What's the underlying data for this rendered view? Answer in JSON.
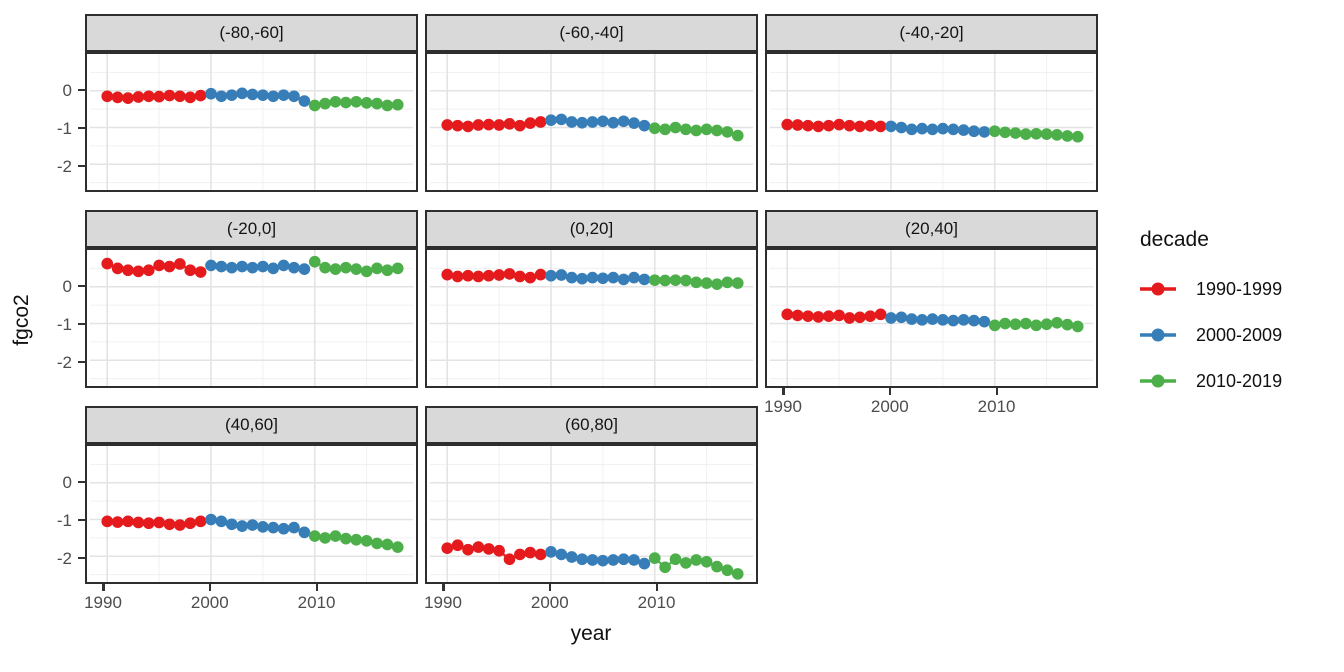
{
  "figure": {
    "y_axis": {
      "label": "fgco2",
      "ticks": [
        "0",
        "-1",
        "-2"
      ]
    },
    "x_axis": {
      "label": "year",
      "ticks": [
        "1990",
        "2000",
        "2010"
      ]
    }
  },
  "legend": {
    "title": "decade",
    "entries": [
      {
        "label": "1990-1999",
        "color": "#E41A1C"
      },
      {
        "label": "2000-2009",
        "color": "#377EB8"
      },
      {
        "label": "2010-2019",
        "color": "#4DAF4A"
      }
    ]
  },
  "chart_data": {
    "type": "line",
    "title": "",
    "xlabel": "year",
    "ylabel": "fgco2",
    "x_range": {
      "start": 1990,
      "end": 2018
    },
    "x_ticks": [
      1990,
      2000,
      2010
    ],
    "x_minor_ticks": [
      1995,
      2005,
      2015
    ],
    "ylim": [
      -2.7,
      1.0
    ],
    "y_ticks": [
      0,
      -1,
      -2
    ],
    "y_minor_ticks": [
      0.5,
      -0.5,
      -1.5,
      -2.5
    ],
    "grid": "on",
    "legend_position": "right",
    "series_meta": [
      {
        "name": "1990-1999",
        "color": "#E41A1C",
        "start_year": 1990
      },
      {
        "name": "2000-2009",
        "color": "#377EB8",
        "start_year": 2000
      },
      {
        "name": "2010-2019",
        "color": "#4DAF4A",
        "start_year": 2010
      }
    ],
    "facets": [
      {
        "label": "(-80,-60]",
        "values": {
          "1990-1999": [
            -0.15,
            -0.18,
            -0.2,
            -0.17,
            -0.15,
            -0.16,
            -0.13,
            -0.15,
            -0.18,
            -0.13
          ],
          "2000-2009": [
            -0.08,
            -0.15,
            -0.12,
            -0.07,
            -0.1,
            -0.12,
            -0.15,
            -0.12,
            -0.15,
            -0.28
          ],
          "2010-2019": [
            -0.4,
            -0.35,
            -0.3,
            -0.32,
            -0.3,
            -0.33,
            -0.35,
            -0.4,
            -0.38
          ]
        }
      },
      {
        "label": "(-60,-40]",
        "values": {
          "1990-1999": [
            -0.93,
            -0.95,
            -0.97,
            -0.93,
            -0.92,
            -0.93,
            -0.9,
            -0.95,
            -0.88,
            -0.85
          ],
          "2000-2009": [
            -0.8,
            -0.78,
            -0.85,
            -0.87,
            -0.85,
            -0.83,
            -0.87,
            -0.83,
            -0.88,
            -0.95
          ],
          "2010-2019": [
            -1.02,
            -1.05,
            -1.0,
            -1.05,
            -1.08,
            -1.05,
            -1.08,
            -1.12,
            -1.22
          ]
        }
      },
      {
        "label": "(-40,-20]",
        "values": {
          "1990-1999": [
            -0.92,
            -0.93,
            -0.95,
            -0.97,
            -0.95,
            -0.92,
            -0.95,
            -0.97,
            -0.95,
            -0.97
          ],
          "2000-2009": [
            -0.97,
            -1.0,
            -1.05,
            -1.03,
            -1.05,
            -1.03,
            -1.05,
            -1.07,
            -1.1,
            -1.12
          ],
          "2010-2019": [
            -1.1,
            -1.13,
            -1.15,
            -1.18,
            -1.17,
            -1.18,
            -1.2,
            -1.23,
            -1.25
          ]
        }
      },
      {
        "label": "(-20,0]",
        "values": {
          "1990-1999": [
            0.63,
            0.5,
            0.45,
            0.42,
            0.45,
            0.58,
            0.55,
            0.62,
            0.45,
            0.4
          ],
          "2000-2009": [
            0.58,
            0.55,
            0.52,
            0.55,
            0.52,
            0.55,
            0.5,
            0.58,
            0.52,
            0.48
          ],
          "2010-2019": [
            0.68,
            0.52,
            0.48,
            0.52,
            0.48,
            0.42,
            0.5,
            0.45,
            0.5
          ]
        }
      },
      {
        "label": "(0,20]",
        "values": {
          "1990-1999": [
            0.33,
            0.28,
            0.3,
            0.28,
            0.3,
            0.32,
            0.35,
            0.28,
            0.25,
            0.33
          ],
          "2000-2009": [
            0.3,
            0.32,
            0.25,
            0.22,
            0.25,
            0.23,
            0.25,
            0.2,
            0.25,
            0.2
          ],
          "2010-2019": [
            0.18,
            0.17,
            0.18,
            0.17,
            0.12,
            0.1,
            0.07,
            0.12,
            0.1
          ]
        }
      },
      {
        "label": "(20,40]",
        "values": {
          "1990-1999": [
            -0.75,
            -0.78,
            -0.8,
            -0.82,
            -0.8,
            -0.78,
            -0.85,
            -0.83,
            -0.8,
            -0.75
          ],
          "2000-2009": [
            -0.85,
            -0.83,
            -0.88,
            -0.9,
            -0.88,
            -0.9,
            -0.92,
            -0.9,
            -0.92,
            -0.95
          ],
          "2010-2019": [
            -1.05,
            -1.0,
            -1.02,
            -1.0,
            -1.05,
            -1.02,
            -0.98,
            -1.03,
            -1.08
          ]
        }
      },
      {
        "label": "(40,60]",
        "values": {
          "1990-1999": [
            -1.05,
            -1.07,
            -1.05,
            -1.08,
            -1.1,
            -1.08,
            -1.13,
            -1.15,
            -1.1,
            -1.05
          ],
          "2000-2009": [
            -1.0,
            -1.05,
            -1.13,
            -1.18,
            -1.15,
            -1.2,
            -1.22,
            -1.25,
            -1.22,
            -1.35
          ],
          "2010-2019": [
            -1.45,
            -1.5,
            -1.45,
            -1.52,
            -1.55,
            -1.58,
            -1.65,
            -1.68,
            -1.75
          ]
        }
      },
      {
        "label": "(60,80]",
        "values": {
          "1990-1999": [
            -1.78,
            -1.7,
            -1.82,
            -1.75,
            -1.8,
            -1.85,
            -2.08,
            -1.95,
            -1.9,
            -1.95
          ],
          "2000-2009": [
            -1.88,
            -1.95,
            -2.02,
            -2.08,
            -2.1,
            -2.12,
            -2.1,
            -2.08,
            -2.1,
            -2.2
          ],
          "2010-2019": [
            -2.05,
            -2.3,
            -2.08,
            -2.18,
            -2.1,
            -2.15,
            -2.28,
            -2.38,
            -2.48
          ]
        }
      }
    ]
  }
}
